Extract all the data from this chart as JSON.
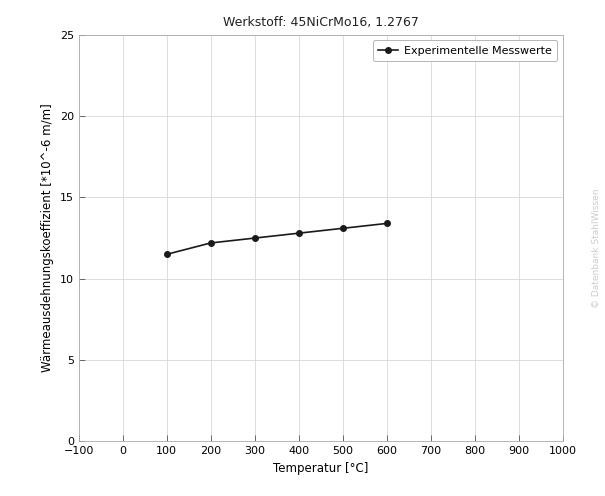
{
  "title": "Werkstoff: 45NiCrMo16, 1.2767",
  "xlabel": "Temperatur [°C]",
  "ylabel": "Wärmeausdehnungskoeffizient [*10^-6 m/m]",
  "x_data": [
    100,
    200,
    300,
    400,
    500,
    600
  ],
  "y_data": [
    11.5,
    12.2,
    12.5,
    12.8,
    13.1,
    13.4
  ],
  "xlim": [
    -100,
    1000
  ],
  "ylim": [
    0,
    25
  ],
  "xticks": [
    -100,
    0,
    100,
    200,
    300,
    400,
    500,
    600,
    700,
    800,
    900,
    1000
  ],
  "yticks": [
    0,
    5,
    10,
    15,
    20,
    25
  ],
  "line_color": "#1a1a1a",
  "marker": "o",
  "marker_size": 4,
  "line_width": 1.2,
  "legend_label": "Experimentelle Messwerte",
  "bg_color": "#ffffff",
  "grid_color": "#d8d8d8",
  "watermark": "© Datenbank StahlWissen",
  "title_fontsize": 9,
  "axis_label_fontsize": 8.5,
  "tick_fontsize": 8,
  "legend_fontsize": 8
}
